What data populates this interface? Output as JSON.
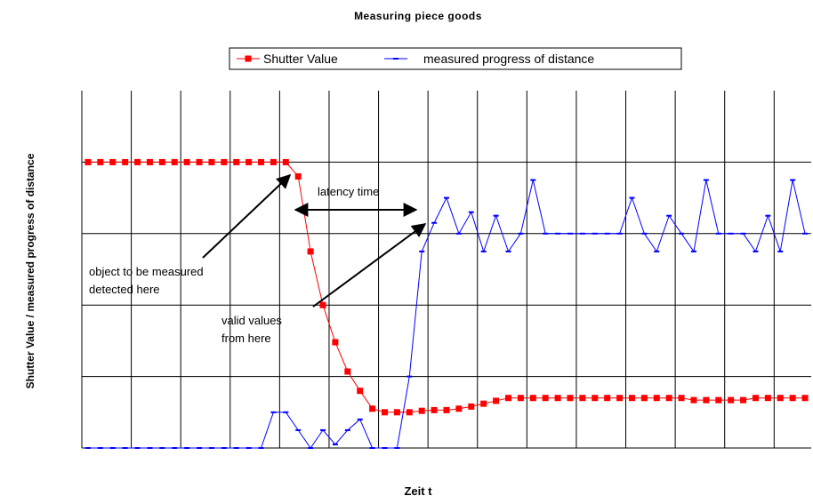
{
  "chart_data": {
    "type": "line",
    "title": "Measuring piece goods",
    "xlabel": "Zeit t",
    "ylabel": "Shutter Value / measured progress of distance",
    "x": [
      0,
      1,
      2,
      3,
      4,
      5,
      6,
      7,
      8,
      9,
      10,
      11,
      12,
      13,
      14,
      15,
      16,
      17,
      18,
      19,
      20,
      21,
      22,
      23,
      24,
      25,
      26,
      27,
      28,
      29,
      30,
      31,
      32,
      33,
      34,
      35,
      36,
      37,
      38,
      39,
      40,
      41,
      42,
      43,
      44,
      45,
      46,
      47,
      48,
      49,
      50,
      51,
      52,
      53,
      54,
      55,
      56,
      57,
      58
    ],
    "xlim": [
      -0.5,
      58.5
    ],
    "xticks": [
      -0.5,
      3.5,
      7.5,
      11.5,
      15.5,
      19.5,
      23.5,
      27.5,
      31.5,
      35.5,
      39.5,
      43.5,
      47.5,
      51.5,
      55.5
    ],
    "ylim": [
      0,
      5
    ],
    "yticks": [
      0,
      1,
      2,
      3,
      4
    ],
    "grid": true,
    "legend": "top",
    "series": [
      {
        "name": "Shutter Value",
        "color": "#ff0000",
        "marker": "square",
        "values": [
          4,
          4,
          4,
          4,
          4,
          4,
          4,
          4,
          4,
          4,
          4,
          4,
          4,
          4,
          4,
          4,
          4,
          3.8,
          2.75,
          2.0,
          1.48,
          1.07,
          0.8,
          0.55,
          0.5,
          0.5,
          0.5,
          0.52,
          0.53,
          0.53,
          0.55,
          0.58,
          0.62,
          0.66,
          0.7,
          0.7,
          0.7,
          0.7,
          0.7,
          0.7,
          0.7,
          0.7,
          0.7,
          0.7,
          0.7,
          0.7,
          0.7,
          0.7,
          0.7,
          0.67,
          0.67,
          0.67,
          0.67,
          0.67,
          0.7,
          0.7,
          0.7,
          0.7,
          0.7
        ]
      },
      {
        "name": "measured progress of distance",
        "color": "#0000ff",
        "marker": "dash",
        "values": [
          0,
          0,
          0,
          0,
          0,
          0,
          0,
          0,
          0,
          0,
          0,
          0,
          0,
          0,
          0,
          0.5,
          0.5,
          0.25,
          0,
          0.25,
          0.05,
          0.25,
          0.4,
          0,
          0,
          0,
          1.0,
          2.75,
          3.15,
          3.5,
          3.0,
          3.3,
          2.75,
          3.25,
          2.75,
          3.0,
          3.75,
          3.0,
          3.0,
          3.0,
          3.0,
          3.0,
          3.0,
          3.0,
          3.5,
          3.0,
          2.75,
          3.25,
          3.0,
          2.75,
          3.75,
          3.0,
          3.0,
          3.0,
          2.75,
          3.25,
          2.75,
          3.75,
          3.0
        ]
      }
    ],
    "annotations": [
      [
        "latency time"
      ],
      [
        "object to be measured",
        "detected here"
      ],
      [
        "valid values",
        "from here"
      ]
    ]
  }
}
